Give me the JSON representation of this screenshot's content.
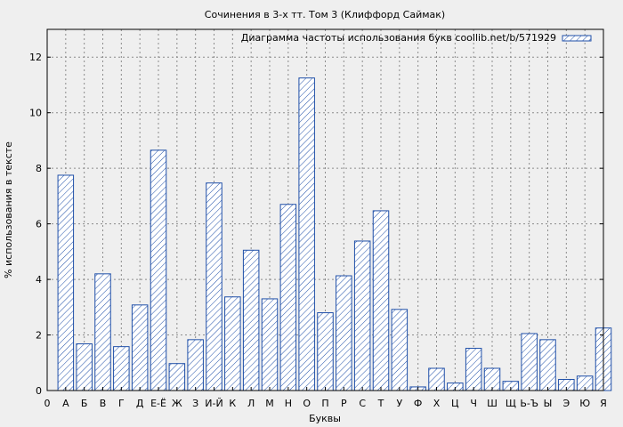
{
  "chart_data": {
    "type": "bar",
    "title": "Сочинения в 3-х тт. Том 3 (Клиффорд Саймак)",
    "xlabel": "Буквы",
    "ylabel": "% использования в тексте",
    "legend": "Диаграмма частоты использования букв coollib.net/b/571929",
    "legend_position": "top-right",
    "grid": true,
    "ylim": [
      0,
      13
    ],
    "yticks": [
      0,
      2,
      4,
      6,
      8,
      10,
      12
    ],
    "x_start_label": "0",
    "categories": [
      "А",
      "Б",
      "В",
      "Г",
      "Д",
      "Е-Ё",
      "Ж",
      "З",
      "И-Й",
      "К",
      "Л",
      "М",
      "Н",
      "О",
      "П",
      "Р",
      "С",
      "Т",
      "У",
      "Ф",
      "Х",
      "Ц",
      "Ч",
      "Ш",
      "Щ",
      "Ь-Ъ",
      "Ы",
      "Э",
      "Ю",
      "Я"
    ],
    "values": [
      7.75,
      1.68,
      4.2,
      1.58,
      3.08,
      8.65,
      0.97,
      1.83,
      7.47,
      3.37,
      5.05,
      3.3,
      6.7,
      11.25,
      2.8,
      4.13,
      5.38,
      6.47,
      2.92,
      0.13,
      0.8,
      0.27,
      1.52,
      0.8,
      0.33,
      2.05,
      1.83,
      0.4,
      0.52,
      2.25
    ],
    "colors": {
      "bar_stroke": "#1f4fa8",
      "hatch": "#1f4fa8",
      "plot_bg": "#efefef",
      "grid": "#8c8c8c"
    }
  }
}
